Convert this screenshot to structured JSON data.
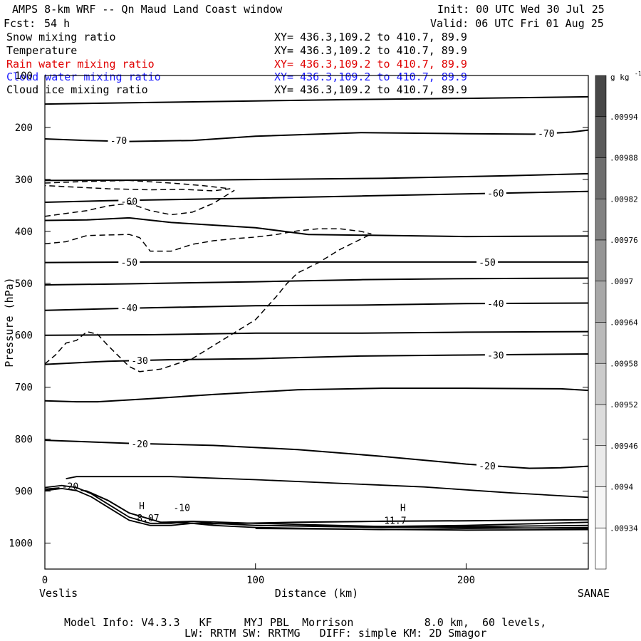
{
  "header": {
    "title": "AMPS 8-km WRF -- Qn Maud Land Coast window",
    "init": "Init: 00 UTC Wed 30 Jul 25",
    "fcst_label": "Fcst:",
    "fcst_value": "54 h",
    "valid": "Valid: 06 UTC Fri 01 Aug 25"
  },
  "fields": [
    {
      "name": "Snow mixing ratio",
      "xy": "XY= 436.3,109.2 to 410.7, 89.9",
      "color": "#000000"
    },
    {
      "name": "Temperature",
      "xy": "XY= 436.3,109.2 to 410.7, 89.9",
      "color": "#000000"
    },
    {
      "name": "Rain water mixing ratio",
      "xy": "XY= 436.3,109.2 to 410.7, 89.9",
      "color": "#e00000"
    },
    {
      "name": "Cloud water mixing ratio",
      "xy": "XY= 436.3,109.2 to 410.7, 89.9",
      "color": "#1a1aff"
    },
    {
      "name": "Cloud ice mixing ratio",
      "xy": "XY= 436.3,109.2 to 410.7, 89.9",
      "color": "#000000"
    }
  ],
  "footer": {
    "line1": "Model Info: V4.3.3   KF     MYJ PBL  Morrison           8.0 km,  60 levels,",
    "line2": "LW: RRTM SW: RRTMG   DIFF: simple KM: 2D Smagor"
  },
  "chart_data": {
    "type": "contour",
    "xlabel": "Distance (km)",
    "ylabel": "Pressure (hPa)",
    "xlim": [
      0,
      258
    ],
    "ylim": [
      1050,
      100
    ],
    "x_ticks": [
      0,
      100,
      200
    ],
    "y_ticks": [
      100,
      200,
      300,
      400,
      500,
      600,
      700,
      800,
      900,
      1000
    ],
    "left_endpoint": "Veslis",
    "right_endpoint": "SANAE",
    "colorbar": {
      "unit": "g kg",
      "unit_exponent": "-1",
      "labels": [
        ".00994",
        ".00988",
        ".00982",
        ".00976",
        ".0097",
        ".00964",
        ".00958",
        ".00952",
        ".00946",
        ".0094",
        ".00934"
      ],
      "colors": [
        "#474747",
        "#5b5b5b",
        "#6e6e6e",
        "#828282",
        "#959595",
        "#a8a8a8",
        "#bababa",
        "#cbcbcb",
        "#dcdcdc",
        "#eaeaea",
        "#f5f5f5",
        "#ffffff"
      ]
    },
    "temperature_contours": [
      {
        "points": [
          [
            0,
            155
          ],
          [
            50,
            152
          ],
          [
            100,
            149
          ],
          [
            150,
            146
          ],
          [
            200,
            144
          ],
          [
            258,
            141
          ]
        ]
      },
      {
        "points": [
          [
            0,
            222
          ],
          [
            20,
            225
          ],
          [
            40,
            227
          ],
          [
            70,
            225
          ],
          [
            100,
            217
          ],
          [
            150,
            210
          ],
          [
            200,
            212
          ],
          [
            232,
            213
          ],
          [
            250,
            209
          ],
          [
            258,
            205
          ]
        ],
        "label": "-70",
        "label_at": [
          [
            35,
            225
          ],
          [
            238,
            211
          ]
        ]
      },
      {
        "points": [
          [
            0,
            302
          ],
          [
            80,
            301
          ],
          [
            160,
            298
          ],
          [
            220,
            293
          ],
          [
            258,
            289
          ]
        ]
      },
      {
        "points": [
          [
            0,
            344
          ],
          [
            30,
            341
          ],
          [
            60,
            339
          ],
          [
            100,
            336
          ],
          [
            150,
            332
          ],
          [
            210,
            327
          ],
          [
            258,
            323
          ]
        ],
        "label": "-60",
        "label_at": [
          [
            40,
            342
          ],
          [
            214,
            326
          ]
        ]
      },
      {
        "points": [
          [
            0,
            379
          ],
          [
            20,
            378
          ],
          [
            40,
            374
          ],
          [
            60,
            383
          ],
          [
            100,
            393
          ],
          [
            125,
            406
          ],
          [
            200,
            410
          ],
          [
            258,
            409
          ]
        ]
      },
      {
        "points": [
          [
            0,
            460
          ],
          [
            50,
            459
          ],
          [
            100,
            459
          ],
          [
            150,
            459
          ],
          [
            200,
            459
          ],
          [
            258,
            459
          ]
        ],
        "label": "-50",
        "label_at": [
          [
            40,
            459
          ],
          [
            210,
            459
          ]
        ]
      },
      {
        "points": [
          [
            0,
            503
          ],
          [
            40,
            501
          ],
          [
            100,
            497
          ],
          [
            150,
            493
          ],
          [
            200,
            491
          ],
          [
            258,
            490
          ]
        ]
      },
      {
        "points": [
          [
            0,
            552
          ],
          [
            40,
            548
          ],
          [
            100,
            543
          ],
          [
            150,
            542
          ],
          [
            200,
            539
          ],
          [
            258,
            538
          ]
        ],
        "label": "-40",
        "label_at": [
          [
            40,
            547
          ],
          [
            214,
            539
          ]
        ]
      },
      {
        "points": [
          [
            0,
            600
          ],
          [
            50,
            599
          ],
          [
            100,
            596
          ],
          [
            150,
            596
          ],
          [
            200,
            594
          ],
          [
            258,
            593
          ]
        ]
      },
      {
        "points": [
          [
            0,
            656
          ],
          [
            30,
            650
          ],
          [
            60,
            647
          ],
          [
            100,
            645
          ],
          [
            150,
            640
          ],
          [
            200,
            638
          ],
          [
            258,
            636
          ]
        ],
        "label": "-30",
        "label_at": [
          [
            45,
            648
          ],
          [
            214,
            638
          ]
        ]
      },
      {
        "points": [
          [
            0,
            726
          ],
          [
            15,
            728
          ],
          [
            25,
            728
          ],
          [
            50,
            722
          ],
          [
            80,
            714
          ],
          [
            120,
            705
          ],
          [
            160,
            702
          ],
          [
            200,
            702
          ],
          [
            245,
            703
          ],
          [
            258,
            706
          ]
        ]
      },
      {
        "points": [
          [
            0,
            802
          ],
          [
            40,
            808
          ],
          [
            80,
            812
          ],
          [
            120,
            820
          ],
          [
            160,
            833
          ],
          [
            200,
            848
          ],
          [
            230,
            856
          ],
          [
            245,
            855
          ],
          [
            258,
            852
          ]
        ],
        "label": "-20",
        "label_at": [
          [
            45,
            809
          ],
          [
            210,
            851
          ]
        ]
      },
      {
        "points": [
          [
            0,
            896
          ],
          [
            10,
            893
          ],
          [
            20,
            900
          ],
          [
            30,
            918
          ],
          [
            40,
            942
          ],
          [
            55,
            960
          ],
          [
            80,
            963
          ],
          [
            120,
            960
          ],
          [
            160,
            958
          ],
          [
            200,
            957
          ],
          [
            258,
            955
          ]
        ],
        "label": "-20",
        "label_at": [
          [
            12,
            890
          ]
        ]
      }
    ],
    "cloud_ice_contours": [
      {
        "points": [
          [
            0,
            307
          ],
          [
            20,
            304
          ],
          [
            40,
            302
          ],
          [
            60,
            307
          ],
          [
            75,
            312
          ],
          [
            88,
            318
          ],
          [
            80,
            322
          ],
          [
            65,
            319
          ],
          [
            50,
            320
          ],
          [
            30,
            318
          ],
          [
            0,
            312
          ]
        ]
      },
      {
        "points": [
          [
            0,
            371
          ],
          [
            20,
            360
          ],
          [
            30,
            351
          ],
          [
            40,
            346
          ],
          [
            50,
            360
          ],
          [
            60,
            368
          ],
          [
            70,
            363
          ],
          [
            80,
            346
          ],
          [
            90,
            321
          ]
        ]
      },
      {
        "points": [
          [
            0,
            424
          ],
          [
            10,
            420
          ],
          [
            20,
            408
          ],
          [
            40,
            406
          ],
          [
            45,
            412
          ],
          [
            50,
            438
          ],
          [
            60,
            438
          ],
          [
            70,
            425
          ],
          [
            80,
            418
          ],
          [
            90,
            414
          ],
          [
            100,
            411
          ],
          [
            110,
            406
          ],
          [
            120,
            399
          ],
          [
            130,
            395
          ],
          [
            140,
            395
          ],
          [
            150,
            400
          ],
          [
            155,
            405
          ]
        ]
      },
      {
        "points": [
          [
            0,
            655
          ],
          [
            5,
            638
          ],
          [
            10,
            615
          ],
          [
            15,
            610
          ],
          [
            20,
            593
          ],
          [
            25,
            598
          ],
          [
            30,
            620
          ],
          [
            40,
            660
          ],
          [
            45,
            670
          ],
          [
            55,
            665
          ],
          [
            70,
            645
          ],
          [
            80,
            620
          ],
          [
            90,
            595
          ],
          [
            100,
            570
          ],
          [
            110,
            525
          ],
          [
            115,
            500
          ],
          [
            120,
            480
          ],
          [
            130,
            460
          ],
          [
            140,
            435
          ],
          [
            150,
            415
          ],
          [
            155,
            405
          ]
        ]
      }
    ],
    "surface_lines": [
      {
        "points": [
          [
            0,
            893
          ],
          [
            8,
            889
          ],
          [
            15,
            893
          ],
          [
            22,
            905
          ],
          [
            30,
            925
          ],
          [
            40,
            950
          ],
          [
            50,
            962
          ],
          [
            60,
            962
          ],
          [
            70,
            958
          ],
          [
            80,
            962
          ],
          [
            100,
            966
          ],
          [
            160,
            968
          ],
          [
            200,
            966
          ],
          [
            258,
            960
          ]
        ]
      },
      {
        "points": [
          [
            0,
            899
          ],
          [
            8,
            895
          ],
          [
            15,
            899
          ],
          [
            22,
            911
          ],
          [
            30,
            931
          ],
          [
            40,
            956
          ],
          [
            50,
            966
          ],
          [
            60,
            966
          ],
          [
            70,
            962
          ],
          [
            80,
            966
          ],
          [
            100,
            970
          ],
          [
            160,
            974
          ],
          [
            200,
            972
          ],
          [
            258,
            970
          ]
        ]
      },
      {
        "points": [
          [
            10,
            876
          ],
          [
            15,
            872
          ],
          [
            60,
            872
          ],
          [
            100,
            878
          ],
          [
            140,
            885
          ],
          [
            180,
            892
          ],
          [
            220,
            903
          ],
          [
            258,
            912
          ]
        ]
      },
      {
        "points": [
          [
            56,
            960
          ],
          [
            70,
            958
          ],
          [
            100,
            962
          ],
          [
            160,
            968
          ],
          [
            258,
            972
          ]
        ]
      },
      {
        "points": [
          [
            100,
            966
          ],
          [
            160,
            970
          ],
          [
            258,
            966
          ]
        ]
      },
      {
        "points": [
          [
            100,
            972
          ],
          [
            200,
            975
          ],
          [
            258,
            974
          ]
        ]
      }
    ],
    "annotations": [
      {
        "text": "H",
        "x": 46,
        "y": 935
      },
      {
        "text": "8.07",
        "x": 49,
        "y": 958
      },
      {
        "text": "-10",
        "x": 65,
        "y": 938
      },
      {
        "text": "H",
        "x": 170,
        "y": 938
      },
      {
        "text": "-11.7",
        "x": 165,
        "y": 963
      }
    ]
  }
}
